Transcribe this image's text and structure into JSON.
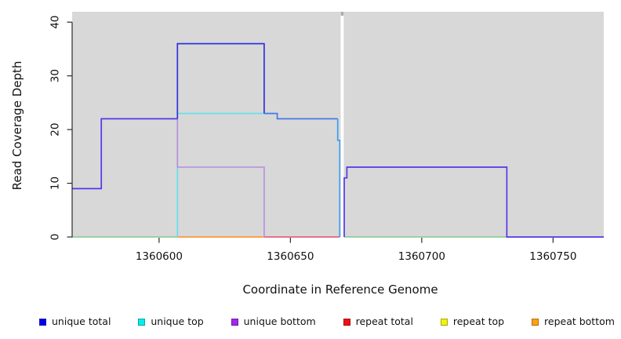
{
  "chart_data": {
    "type": "line",
    "subtype": "step-coverage-plot",
    "title": "",
    "xlabel": "Coordinate in Reference Genome",
    "ylabel": "Read Coverage Depth",
    "x_ticks": [
      1360600,
      1360650,
      1360700,
      1360750
    ],
    "y_ticks": [
      0,
      10,
      20,
      30,
      40
    ],
    "x_range": [
      1360566.9,
      1360769.3
    ],
    "y_range": [
      0,
      41.93
    ],
    "grid": false,
    "panel_color": "#D8D8D8",
    "axis_color": "#2b2b2b",
    "gap": {
      "comment": "white vertical masked band across plot",
      "x_start": 1360669.15,
      "x_end": 1360670.3,
      "band_color": "#FFFFFF",
      "stub_color": "#ABABAB"
    },
    "series": [
      {
        "name": "unique total",
        "color_legend": "#0000EE",
        "steps": [
          [
            1360566.9,
            9
          ],
          [
            1360578,
            22
          ],
          [
            1360607,
            36
          ],
          [
            1360640,
            23
          ],
          [
            1360645,
            22
          ],
          [
            1360668,
            18
          ],
          [
            1360668.8,
            0
          ],
          [
            1360670.5,
            11
          ],
          [
            1360671.5,
            13
          ],
          [
            1360732.4,
            0
          ]
        ],
        "x_end": 1360769.3
      },
      {
        "name": "unique top",
        "color_legend": "#00EEEE",
        "steps": [
          [
            1360566.9,
            0
          ],
          [
            1360607,
            23
          ],
          [
            1360645,
            22
          ],
          [
            1360668,
            18
          ],
          [
            1360668.8,
            0
          ]
        ],
        "x_end": 1360769.3
      },
      {
        "name": "unique bottom",
        "color_legend": "#A228EE",
        "steps": [
          [
            1360566.9,
            9
          ],
          [
            1360578,
            22
          ],
          [
            1360607,
            13
          ],
          [
            1360640,
            0
          ],
          [
            1360670.5,
            11
          ],
          [
            1360671.5,
            13
          ],
          [
            1360732.4,
            0
          ]
        ],
        "x_end": 1360769.3
      },
      {
        "name": "repeat total",
        "color_legend": "#EE1111",
        "steps": [
          [
            1360566.9,
            0
          ]
        ],
        "x_end": 1360769.3
      },
      {
        "name": "repeat top",
        "color_legend": "#F2F211",
        "steps": [
          [
            1360566.9,
            0
          ]
        ],
        "x_end": 1360769.3
      },
      {
        "name": "repeat bottom",
        "color_legend": "#FFA013",
        "steps": [
          [
            1360566.9,
            0
          ]
        ],
        "x_end": 1360769.3
      }
    ],
    "visual_segments": [
      {
        "name": "baseline-left-green",
        "color": "#7ECB90",
        "w": 1.5,
        "pts": [
          [
            1360566.9,
            0
          ],
          [
            1360607,
            0
          ]
        ]
      },
      {
        "name": "baseline-right-green",
        "color": "#7ECB90",
        "w": 1.5,
        "pts": [
          [
            1360670.5,
            0
          ],
          [
            1360732.4,
            0
          ]
        ]
      },
      {
        "name": "baseline-orange",
        "color": "#FF8C1A",
        "w": 1.6,
        "pts": [
          [
            1360607,
            0
          ],
          [
            1360640,
            0
          ]
        ]
      },
      {
        "name": "baseline-red",
        "color": "#E24B76",
        "w": 1.5,
        "pts": [
          [
            1360640,
            0
          ],
          [
            1360668.8,
            0
          ]
        ]
      },
      {
        "name": "unique-top-cyan",
        "color": "#5FE0EE",
        "w": 1.6,
        "pts": [
          [
            1360607,
            0
          ],
          [
            1360607,
            23
          ],
          [
            1360644,
            23
          ]
        ]
      },
      {
        "name": "unique-bottom-purple",
        "color": "#B68CDE",
        "w": 1.6,
        "pts": [
          [
            1360607,
            22
          ],
          [
            1360607,
            13
          ],
          [
            1360640,
            13
          ],
          [
            1360640,
            0
          ]
        ]
      },
      {
        "name": "unique-total-darkblue",
        "color": "#3032DC",
        "w": 1.7,
        "pts": [
          [
            1360607,
            22
          ],
          [
            1360607,
            36
          ],
          [
            1360640,
            36
          ],
          [
            1360640,
            23
          ]
        ]
      },
      {
        "name": "unique-total-violet-left",
        "color": "#5636E8",
        "w": 1.7,
        "pts": [
          [
            1360566.9,
            9
          ],
          [
            1360578,
            9
          ],
          [
            1360578,
            22
          ],
          [
            1360607,
            22
          ]
        ]
      },
      {
        "name": "unique-total-royalblue",
        "color": "#4A77E8",
        "w": 1.7,
        "pts": [
          [
            1360640,
            23
          ],
          [
            1360645,
            23
          ],
          [
            1360645,
            22
          ],
          [
            1360668,
            22
          ]
        ]
      },
      {
        "name": "unique-total-brightblue",
        "color": "#3E9CF2",
        "w": 1.7,
        "pts": [
          [
            1360668,
            22
          ],
          [
            1360668,
            18
          ],
          [
            1360668.8,
            18
          ],
          [
            1360668.8,
            0
          ]
        ]
      },
      {
        "name": "unique-total-violet-right",
        "color": "#5636E8",
        "w": 1.7,
        "pts": [
          [
            1360670.5,
            0
          ],
          [
            1360670.5,
            11
          ],
          [
            1360671.5,
            11
          ],
          [
            1360671.5,
            13
          ],
          [
            1360732.4,
            13
          ],
          [
            1360732.4,
            0
          ],
          [
            1360769.3,
            0
          ]
        ]
      }
    ],
    "legend_position": "bottom"
  },
  "legend": {
    "items": [
      {
        "label": "unique total",
        "fill": "#0000EE",
        "border": "#1A1AA6"
      },
      {
        "label": "unique top",
        "fill": "#00EEEE",
        "border": "#0FA3A8"
      },
      {
        "label": "unique bottom",
        "fill": "#A228EE",
        "border": "#6F1BA6"
      },
      {
        "label": "repeat total",
        "fill": "#EE1111",
        "border": "#A60F0F"
      },
      {
        "label": "repeat top",
        "fill": "#F2F211",
        "border": "#A8A80F"
      },
      {
        "label": "repeat bottom",
        "fill": "#FFA013",
        "border": "#B26F0D"
      }
    ]
  },
  "axes": {
    "xlabel": "Coordinate in Reference Genome",
    "ylabel": "Read Coverage Depth"
  }
}
